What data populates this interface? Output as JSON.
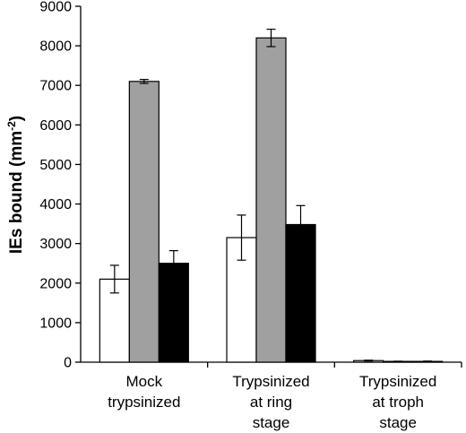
{
  "chart_data": {
    "type": "bar",
    "ylabel": "IEs bound (mm",
    "ylabel_superscript": "-2",
    "ylabel_close": ")",
    "ylim": [
      0,
      9000
    ],
    "yticks": [
      0,
      1000,
      2000,
      3000,
      4000,
      5000,
      6000,
      7000,
      8000,
      9000
    ],
    "categories": [
      [
        "Mock",
        "trypsinized"
      ],
      [
        "Trypsinized",
        "at ring",
        "stage"
      ],
      [
        "Trypsinized",
        "at troph",
        "stage"
      ]
    ],
    "series": [
      {
        "color": "#ffffff",
        "values": [
          2100,
          3150,
          40
        ],
        "errors": [
          350,
          570,
          10
        ]
      },
      {
        "color": "#a0a0a0",
        "values": [
          7100,
          8200,
          20
        ],
        "errors": [
          50,
          220,
          5
        ]
      },
      {
        "color": "#000000",
        "values": [
          2500,
          3480,
          20
        ],
        "errors": [
          320,
          480,
          8
        ]
      }
    ],
    "grid": false,
    "legend": "none"
  }
}
